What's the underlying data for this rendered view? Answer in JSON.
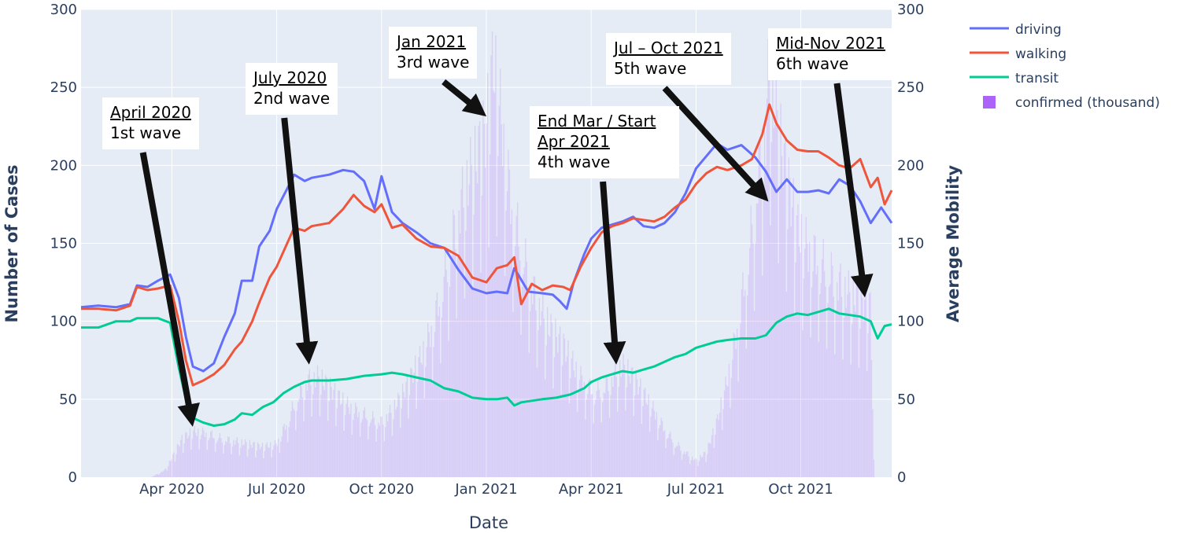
{
  "chart_data": {
    "type": "line+bar",
    "xlabel": "Date",
    "ylabel_left": "Number of Cases",
    "ylabel_right": "Average Mobility",
    "ylim_left": [
      0,
      300
    ],
    "ylim_right": [
      0,
      300
    ],
    "y_ticks": [
      "0",
      "50",
      "100",
      "150",
      "200",
      "250",
      "300"
    ],
    "x_ticks": [
      "Apr 2020",
      "Jul 2020",
      "Oct 2020",
      "Jan 2021",
      "Apr 2021",
      "Jul 2021",
      "Oct 2021"
    ],
    "x_tick_months": [
      3,
      6,
      9,
      12,
      15,
      18,
      21
    ],
    "x_range_months": [
      0.4,
      23.6
    ],
    "grid": true,
    "legend_position": "top-right",
    "legend": [
      "driving",
      "walking",
      "transit",
      "confirmed (thousand)"
    ],
    "colors": {
      "driving": "#636efa",
      "walking": "#ef553b",
      "transit": "#00cc96",
      "confirmed": "#ab63fa",
      "plot_bg": "#e5ecf6",
      "grid": "#ffffff",
      "arrow": "#111111"
    },
    "series": [
      {
        "name": "driving",
        "points": [
          [
            0.4,
            109
          ],
          [
            0.9,
            110
          ],
          [
            1.4,
            109
          ],
          [
            1.8,
            111
          ],
          [
            2.0,
            123
          ],
          [
            2.3,
            122
          ],
          [
            2.6,
            126
          ],
          [
            2.95,
            130
          ],
          [
            3.2,
            115
          ],
          [
            3.4,
            90
          ],
          [
            3.6,
            71
          ],
          [
            3.9,
            68
          ],
          [
            4.2,
            73
          ],
          [
            4.5,
            90
          ],
          [
            4.8,
            105
          ],
          [
            5.0,
            126
          ],
          [
            5.3,
            126
          ],
          [
            5.5,
            148
          ],
          [
            5.8,
            158
          ],
          [
            6.0,
            172
          ],
          [
            6.3,
            185
          ],
          [
            6.5,
            194
          ],
          [
            6.8,
            190
          ],
          [
            7.0,
            192
          ],
          [
            7.5,
            194
          ],
          [
            7.9,
            197
          ],
          [
            8.2,
            196
          ],
          [
            8.5,
            190
          ],
          [
            8.8,
            172
          ],
          [
            9.0,
            193
          ],
          [
            9.3,
            170
          ],
          [
            9.6,
            163
          ],
          [
            10.0,
            157
          ],
          [
            10.4,
            150
          ],
          [
            10.8,
            147
          ],
          [
            11.2,
            133
          ],
          [
            11.6,
            121
          ],
          [
            12.0,
            118
          ],
          [
            12.3,
            119
          ],
          [
            12.6,
            118
          ],
          [
            12.8,
            134
          ],
          [
            13.2,
            119
          ],
          [
            13.6,
            118
          ],
          [
            13.9,
            117
          ],
          [
            14.1,
            113
          ],
          [
            14.3,
            108
          ],
          [
            14.5,
            125
          ],
          [
            14.8,
            143
          ],
          [
            15.0,
            153
          ],
          [
            15.3,
            160
          ],
          [
            15.6,
            162
          ],
          [
            15.9,
            164
          ],
          [
            16.2,
            167
          ],
          [
            16.5,
            161
          ],
          [
            16.8,
            160
          ],
          [
            17.1,
            163
          ],
          [
            17.4,
            170
          ],
          [
            17.7,
            182
          ],
          [
            18.0,
            198
          ],
          [
            18.3,
            206
          ],
          [
            18.6,
            214
          ],
          [
            18.9,
            210
          ],
          [
            19.3,
            213
          ],
          [
            19.7,
            205
          ],
          [
            20.0,
            196
          ],
          [
            20.3,
            183
          ],
          [
            20.6,
            191
          ],
          [
            20.9,
            183
          ],
          [
            21.2,
            183
          ],
          [
            21.5,
            184
          ],
          [
            21.8,
            182
          ],
          [
            22.1,
            191
          ],
          [
            22.4,
            187
          ],
          [
            22.7,
            177
          ],
          [
            23.0,
            163
          ],
          [
            23.3,
            173
          ],
          [
            23.6,
            163
          ]
        ]
      },
      {
        "name": "walking",
        "points": [
          [
            0.4,
            108
          ],
          [
            0.9,
            108
          ],
          [
            1.4,
            107
          ],
          [
            1.8,
            110
          ],
          [
            2.0,
            122
          ],
          [
            2.3,
            120
          ],
          [
            2.6,
            121
          ],
          [
            2.95,
            123
          ],
          [
            3.2,
            100
          ],
          [
            3.4,
            75
          ],
          [
            3.6,
            59
          ],
          [
            3.9,
            62
          ],
          [
            4.2,
            66
          ],
          [
            4.5,
            72
          ],
          [
            4.8,
            82
          ],
          [
            5.0,
            87
          ],
          [
            5.3,
            100
          ],
          [
            5.5,
            112
          ],
          [
            5.8,
            128
          ],
          [
            6.0,
            135
          ],
          [
            6.3,
            150
          ],
          [
            6.5,
            160
          ],
          [
            6.8,
            158
          ],
          [
            7.0,
            161
          ],
          [
            7.5,
            163
          ],
          [
            7.9,
            172
          ],
          [
            8.2,
            181
          ],
          [
            8.5,
            174
          ],
          [
            8.8,
            170
          ],
          [
            9.0,
            175
          ],
          [
            9.3,
            160
          ],
          [
            9.6,
            162
          ],
          [
            10.0,
            153
          ],
          [
            10.4,
            148
          ],
          [
            10.8,
            147
          ],
          [
            11.2,
            142
          ],
          [
            11.6,
            128
          ],
          [
            12.0,
            125
          ],
          [
            12.3,
            134
          ],
          [
            12.6,
            136
          ],
          [
            12.8,
            141
          ],
          [
            13.0,
            111
          ],
          [
            13.3,
            124
          ],
          [
            13.6,
            120
          ],
          [
            13.9,
            123
          ],
          [
            14.2,
            122
          ],
          [
            14.4,
            120
          ],
          [
            14.7,
            135
          ],
          [
            15.0,
            147
          ],
          [
            15.3,
            157
          ],
          [
            15.6,
            161
          ],
          [
            15.9,
            163
          ],
          [
            16.2,
            166
          ],
          [
            16.5,
            165
          ],
          [
            16.8,
            164
          ],
          [
            17.1,
            167
          ],
          [
            17.4,
            173
          ],
          [
            17.7,
            178
          ],
          [
            18.0,
            188
          ],
          [
            18.3,
            195
          ],
          [
            18.6,
            199
          ],
          [
            18.9,
            197
          ],
          [
            19.3,
            200
          ],
          [
            19.6,
            204
          ],
          [
            19.9,
            220
          ],
          [
            20.1,
            239
          ],
          [
            20.3,
            227
          ],
          [
            20.6,
            216
          ],
          [
            20.9,
            210
          ],
          [
            21.2,
            209
          ],
          [
            21.5,
            209
          ],
          [
            21.8,
            205
          ],
          [
            22.1,
            200
          ],
          [
            22.4,
            198
          ],
          [
            22.7,
            204
          ],
          [
            23.0,
            186
          ],
          [
            23.2,
            192
          ],
          [
            23.4,
            175
          ],
          [
            23.6,
            184
          ]
        ]
      },
      {
        "name": "transit",
        "points": [
          [
            0.4,
            96
          ],
          [
            0.9,
            96
          ],
          [
            1.4,
            100
          ],
          [
            1.8,
            100
          ],
          [
            2.0,
            102
          ],
          [
            2.6,
            102
          ],
          [
            2.95,
            99
          ],
          [
            3.2,
            70
          ],
          [
            3.4,
            50
          ],
          [
            3.6,
            38
          ],
          [
            3.9,
            35
          ],
          [
            4.2,
            33
          ],
          [
            4.5,
            34
          ],
          [
            4.8,
            37
          ],
          [
            5.0,
            41
          ],
          [
            5.3,
            40
          ],
          [
            5.6,
            45
          ],
          [
            5.9,
            48
          ],
          [
            6.2,
            54
          ],
          [
            6.5,
            58
          ],
          [
            6.8,
            61
          ],
          [
            7.0,
            62
          ],
          [
            7.5,
            62
          ],
          [
            8.0,
            63
          ],
          [
            8.5,
            65
          ],
          [
            9.0,
            66
          ],
          [
            9.3,
            67
          ],
          [
            9.6,
            66
          ],
          [
            10.0,
            64
          ],
          [
            10.4,
            62
          ],
          [
            10.8,
            57
          ],
          [
            11.2,
            55
          ],
          [
            11.6,
            51
          ],
          [
            12.0,
            50
          ],
          [
            12.3,
            50
          ],
          [
            12.6,
            51
          ],
          [
            12.8,
            46
          ],
          [
            13.0,
            48
          ],
          [
            13.3,
            49
          ],
          [
            13.6,
            50
          ],
          [
            14.0,
            51
          ],
          [
            14.4,
            53
          ],
          [
            14.8,
            57
          ],
          [
            15.0,
            61
          ],
          [
            15.3,
            64
          ],
          [
            15.6,
            66
          ],
          [
            15.9,
            68
          ],
          [
            16.2,
            67
          ],
          [
            16.5,
            69
          ],
          [
            16.8,
            71
          ],
          [
            17.1,
            74
          ],
          [
            17.4,
            77
          ],
          [
            17.7,
            79
          ],
          [
            18.0,
            83
          ],
          [
            18.3,
            85
          ],
          [
            18.6,
            87
          ],
          [
            18.9,
            88
          ],
          [
            19.3,
            89
          ],
          [
            19.7,
            89
          ],
          [
            20.0,
            91
          ],
          [
            20.3,
            99
          ],
          [
            20.6,
            103
          ],
          [
            20.9,
            105
          ],
          [
            21.2,
            104
          ],
          [
            21.5,
            106
          ],
          [
            21.8,
            108
          ],
          [
            22.1,
            105
          ],
          [
            22.4,
            104
          ],
          [
            22.7,
            103
          ],
          [
            23.0,
            100
          ],
          [
            23.2,
            89
          ],
          [
            23.4,
            97
          ],
          [
            23.6,
            98
          ]
        ]
      },
      {
        "name": "confirmed (thousand)",
        "type": "bar",
        "envelope": [
          [
            2.4,
            0
          ],
          [
            2.8,
            5
          ],
          [
            3.0,
            14
          ],
          [
            3.3,
            28
          ],
          [
            3.6,
            33
          ],
          [
            4.0,
            32
          ],
          [
            4.4,
            28
          ],
          [
            4.8,
            26
          ],
          [
            5.2,
            24
          ],
          [
            5.6,
            22
          ],
          [
            6.0,
            24
          ],
          [
            6.3,
            40
          ],
          [
            6.6,
            58
          ],
          [
            6.9,
            70
          ],
          [
            7.2,
            72
          ],
          [
            7.5,
            65
          ],
          [
            7.8,
            57
          ],
          [
            8.1,
            50
          ],
          [
            8.4,
            47
          ],
          [
            8.7,
            43
          ],
          [
            9.0,
            40
          ],
          [
            9.3,
            48
          ],
          [
            9.6,
            60
          ],
          [
            9.9,
            75
          ],
          [
            10.2,
            90
          ],
          [
            10.5,
            112
          ],
          [
            10.8,
            145
          ],
          [
            11.1,
            180
          ],
          [
            11.4,
            210
          ],
          [
            11.7,
            228
          ],
          [
            12.0,
            250
          ],
          [
            12.2,
            300
          ],
          [
            12.4,
            262
          ],
          [
            12.7,
            200
          ],
          [
            13.0,
            165
          ],
          [
            13.3,
            138
          ],
          [
            13.6,
            118
          ],
          [
            13.9,
            104
          ],
          [
            14.2,
            95
          ],
          [
            14.5,
            80
          ],
          [
            14.8,
            68
          ],
          [
            15.1,
            62
          ],
          [
            15.4,
            65
          ],
          [
            15.7,
            75
          ],
          [
            15.9,
            80
          ],
          [
            16.2,
            72
          ],
          [
            16.5,
            60
          ],
          [
            16.8,
            48
          ],
          [
            17.1,
            35
          ],
          [
            17.4,
            25
          ],
          [
            17.7,
            18
          ],
          [
            18.0,
            12
          ],
          [
            18.3,
            18
          ],
          [
            18.6,
            40
          ],
          [
            18.9,
            70
          ],
          [
            19.2,
            110
          ],
          [
            19.5,
            160
          ],
          [
            19.8,
            220
          ],
          [
            20.0,
            250
          ],
          [
            20.1,
            300
          ],
          [
            20.3,
            258
          ],
          [
            20.6,
            215
          ],
          [
            20.9,
            178
          ],
          [
            21.2,
            165
          ],
          [
            21.5,
            158
          ],
          [
            21.8,
            148
          ],
          [
            22.1,
            140
          ],
          [
            22.4,
            132
          ],
          [
            22.7,
            127
          ],
          [
            23.0,
            122
          ],
          [
            23.1,
            0
          ]
        ]
      }
    ],
    "annotations": [
      {
        "date": "April 2020",
        "wave": "1st wave",
        "target": [
          3.55,
          35
        ]
      },
      {
        "date": "July 2020",
        "wave": "2nd wave",
        "target": [
          6.9,
          75
        ]
      },
      {
        "date": "Jan 2021",
        "wave": "3rd wave",
        "target": [
          11.8,
          232
        ]
      },
      {
        "date": "End Mar / Start Apr 2021",
        "wave": "4th wave",
        "target": [
          15.7,
          75
        ]
      },
      {
        "date": "Jul – Oct 2021",
        "wave": "5th wave",
        "target": [
          19.9,
          178
        ]
      },
      {
        "date": "Mid-Nov 2021",
        "wave": "6th wave",
        "target": [
          22.8,
          118
        ]
      }
    ]
  }
}
